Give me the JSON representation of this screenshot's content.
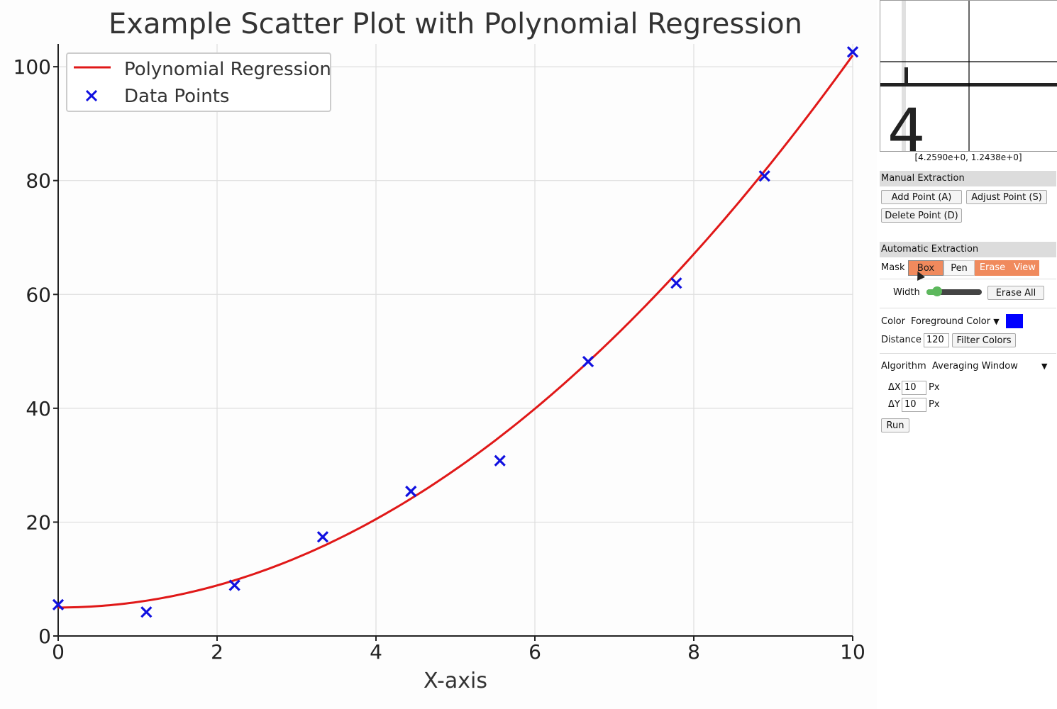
{
  "chart_data": {
    "type": "scatter",
    "title": "Example Scatter Plot with Polynomial Regression",
    "xlabel": "X-axis",
    "ylabel": "",
    "xlim": [
      0,
      10
    ],
    "ylim": [
      0,
      104
    ],
    "xticks": [
      "0",
      "2",
      "4",
      "6",
      "8",
      "10"
    ],
    "yticks": [
      "0",
      "20",
      "40",
      "60",
      "80",
      "100"
    ],
    "grid": true,
    "legend_position": "top-left",
    "series": [
      {
        "name": "Data Points",
        "kind": "scatter",
        "marker": "x",
        "color": "#1010e0",
        "x": [
          0.0,
          1.11,
          2.22,
          3.33,
          4.44,
          5.56,
          6.67,
          7.78,
          8.89,
          10.0
        ],
        "y": [
          5.5,
          4.2,
          8.9,
          17.4,
          25.4,
          30.8,
          48.2,
          62.0,
          80.8,
          102.6
        ]
      },
      {
        "name": "Polynomial Regression",
        "kind": "line",
        "color": "#e01818",
        "coefficients": [
          5.0,
          0.0,
          0.97
        ]
      }
    ]
  },
  "panel": {
    "coord_readout": "[4.2590e+0, 1.2438e+0]",
    "loupe": {
      "digit": "4"
    },
    "manual": {
      "title": "Manual Extraction",
      "add": "Add Point (A)",
      "adjust": "Adjust Point (S)",
      "delete": "Delete Point (D)"
    },
    "automatic": {
      "title": "Automatic Extraction",
      "mask_label": "Mask",
      "box": "Box",
      "pen": "Pen",
      "erase": "Erase",
      "view": "View",
      "width_label": "Width",
      "width_level": 0.15,
      "erase_all": "Erase All",
      "color_label": "Color",
      "color_select": "Foreground Color",
      "color_value": "#0000ff",
      "distance_label": "Distance",
      "distance_value": "120",
      "filter_colors": "Filter Colors",
      "algorithm_label": "Algorithm",
      "algorithm_value": "Averaging Window",
      "dx_label": "ΔX",
      "dx_value": "10",
      "dy_label": "ΔY",
      "dy_value": "10",
      "px_unit": "Px",
      "run": "Run"
    }
  }
}
